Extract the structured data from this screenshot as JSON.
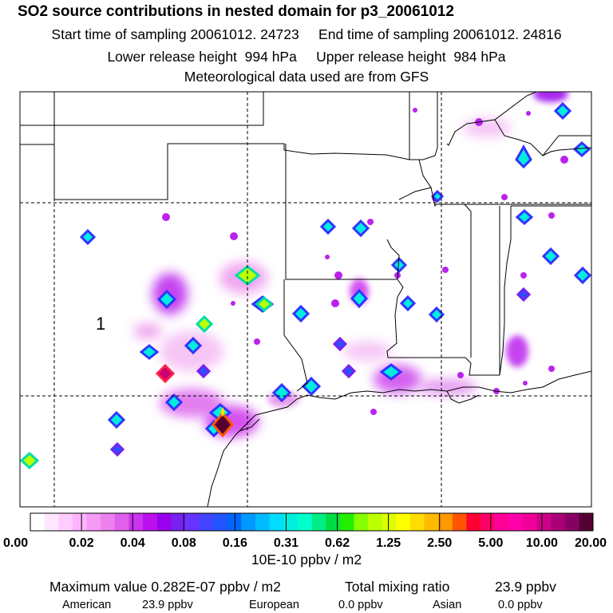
{
  "header": {
    "title": "SO2 source contributions in nested domain for p3_20061012",
    "line1": "Start time of sampling 20061012. 24723     End time of sampling 20061012. 24816",
    "line2": "Lower release height  994 hPa     Upper release height  984 hPa",
    "line3": "Meteorological data used are from GFS"
  },
  "map": {
    "region_label": "1",
    "colors": {
      "state_lines": "#000000",
      "grid_lines": "#000000",
      "frame": "#000000"
    }
  },
  "colorbar": {
    "tick_labels": [
      "0.00",
      "0.02",
      "0.04",
      "0.08",
      "0.16",
      "0.31",
      "0.62",
      "1.25",
      "2.50",
      "5.00",
      "10.00",
      "20.00"
    ],
    "unit_label": "10E-10 ppbv / m2",
    "colors": [
      "#ffffff",
      "#ffe6ff",
      "#ffccff",
      "#ffb3ff",
      "#f59af5",
      "#ee80ee",
      "#e060ee",
      "#cc33ee",
      "#bb11ee",
      "#9900ee",
      "#7722ee",
      "#6633ff",
      "#4444ff",
      "#2255ff",
      "#0066ff",
      "#0099ff",
      "#00bbff",
      "#00ddff",
      "#00eedd",
      "#00ffcc",
      "#00ee88",
      "#00dd44",
      "#22ee00",
      "#88ff00",
      "#bbff00",
      "#ddff00",
      "#ffff00",
      "#ffdd00",
      "#ffbb00",
      "#ff9900",
      "#ff5500",
      "#ff0033",
      "#ff0066",
      "#ff0099",
      "#ff00aa",
      "#ee0099",
      "#cc0088",
      "#aa0077",
      "#880066",
      "#550033"
    ]
  },
  "footer": {
    "max_label": "Maximum value  0.282E-07 ppbv / m2",
    "total_label": "Total mixing ratio",
    "total_value": "23.9 ppbv",
    "american_label": "American",
    "american_value": "23.9 ppbv",
    "european_label": "European",
    "european_value": "0.0 ppbv",
    "asian_label": "Asian",
    "asian_value": "0.0 ppbv"
  }
}
